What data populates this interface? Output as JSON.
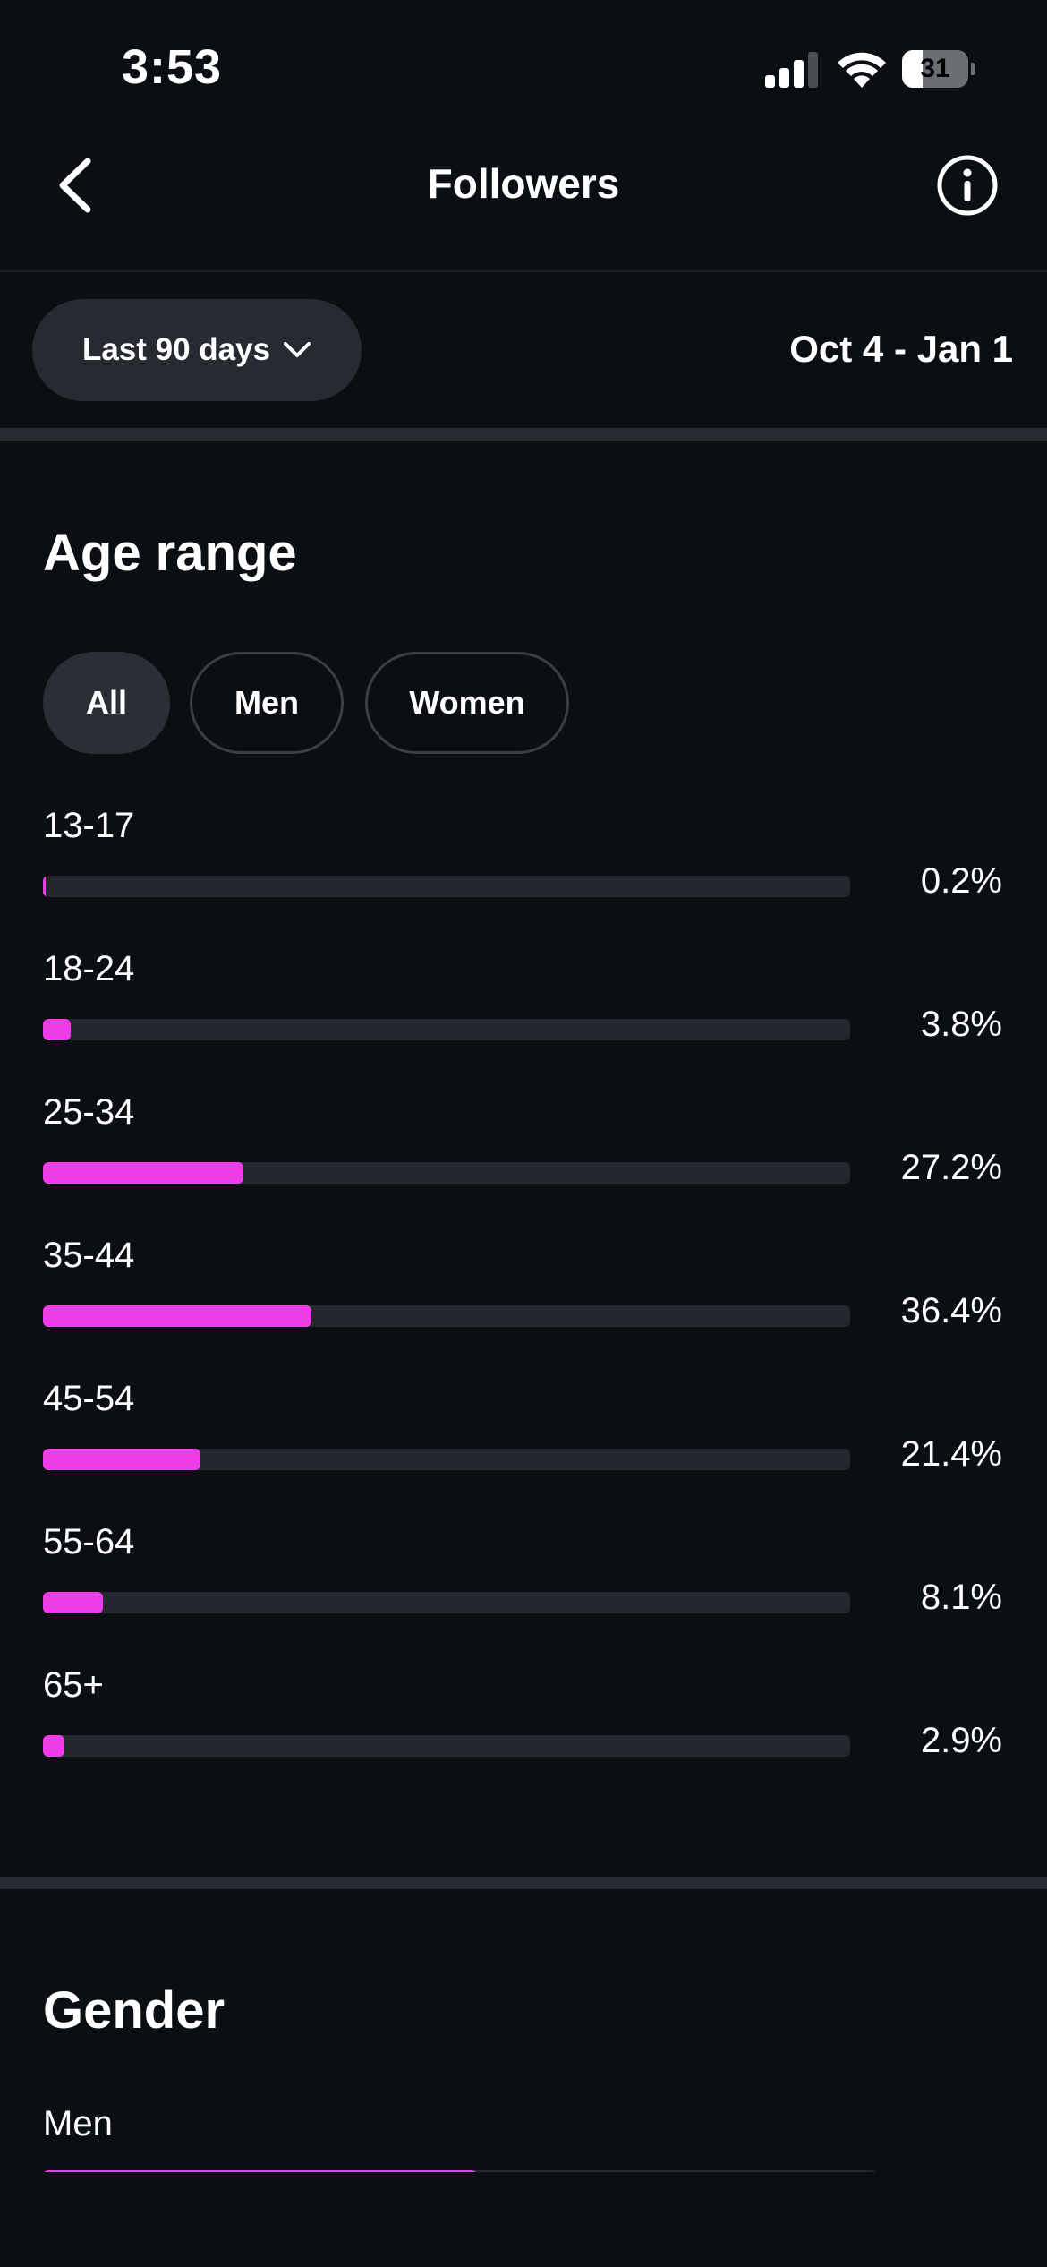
{
  "status_bar": {
    "time": "3:53",
    "battery": "31",
    "battery_level": 0.31
  },
  "nav": {
    "title": "Followers",
    "back_icon": "chevron-left-icon",
    "info_icon": "info-icon"
  },
  "filter": {
    "period_label": "Last 90 days",
    "date_range": "Oct 4 - Jan 1"
  },
  "age_range": {
    "title": "Age range",
    "segments": [
      "All",
      "Men",
      "Women"
    ],
    "selected": "All",
    "rows": [
      {
        "label": "13-17",
        "value_text": "0.2%",
        "value": 0.2
      },
      {
        "label": "18-24",
        "value_text": "3.8%",
        "value": 3.8
      },
      {
        "label": "25-34",
        "value_text": "27.2%",
        "value": 27.2
      },
      {
        "label": "35-44",
        "value_text": "36.4%",
        "value": 36.4
      },
      {
        "label": "45-54",
        "value_text": "21.4%",
        "value": 21.4
      },
      {
        "label": "55-64",
        "value_text": "8.1%",
        "value": 8.1
      },
      {
        "label": "65+",
        "value_text": "2.9%",
        "value": 2.9
      }
    ],
    "scale_max": 100
  },
  "gender": {
    "title": "Gender",
    "rows": [
      {
        "label": "Men",
        "value": 52
      }
    ]
  },
  "colors": {
    "accent": "#ee3de8",
    "background": "#0b0e12",
    "track": "#24282e",
    "chip": "#262a31"
  }
}
